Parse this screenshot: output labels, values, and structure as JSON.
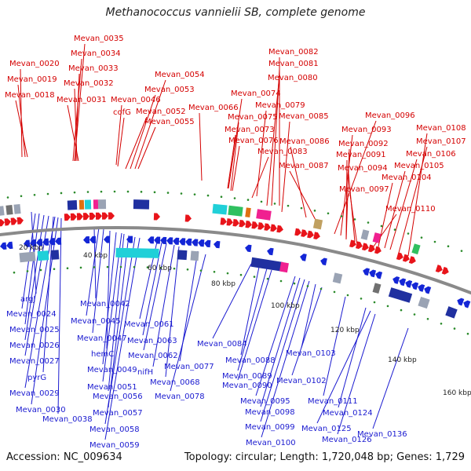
{
  "title": "Methanococcus vannielii SB, complete genome",
  "footer": {
    "accession": "Accession: NC_009634",
    "summary": "Topology: circular; Length: 1,720,048 bp; Genes: 1,729"
  },
  "colors": {
    "forward": "#e8141a",
    "reverse": "#1426d6",
    "backbone": "#8a8a8a",
    "label_forward": "#d40000",
    "label_reverse": "#1a1ad0",
    "tick": "#2a8a2a"
  },
  "ruler": [
    "20 kbp",
    "40 kbp",
    "60 kbp",
    "80 kbp",
    "100 kbp",
    "120 kbp",
    "140 kbp",
    "160 kbp"
  ],
  "forward_labels": [
    "Mevan_0035",
    "Mevan_0034",
    "Mevan_0033",
    "Mevan_0032",
    "Mevan_0031",
    "Mevan_0020",
    "Mevan_0019",
    "Mevan_0018",
    "Mevan_0054",
    "Mevan_0053",
    "Mevan_0046",
    "Mevan_0052",
    "cofG",
    "Mevan_0055",
    "Mevan_0066",
    "Mevan_0082",
    "Mevan_0081",
    "Mevan_0080",
    "Mevan_0074",
    "Mevan_0079",
    "Mevan_0075",
    "Mevan_0085",
    "Mevan_0073",
    "Mevan_0076",
    "Mevan_0086",
    "Mevan_0083",
    "Mevan_0087",
    "Mevan_0096",
    "Mevan_0093",
    "Mevan_0108",
    "Mevan_0092",
    "Mevan_0107",
    "Mevan_0091",
    "Mevan_0106",
    "Mevan_0094",
    "Mevan_0105",
    "Mevan_0104",
    "Mevan_0097",
    "Mevan_0110"
  ],
  "reverse_labels": [
    "argJ",
    "Mevan_0024",
    "Mevan_0025",
    "Mevan_0026",
    "Mevan_0027",
    "pyrG",
    "Mevan_0029",
    "Mevan_0030",
    "Mevan_0038",
    "Mevan_0042",
    "Mevan_0045",
    "Mevan_0047",
    "hemC",
    "Mevan_0049",
    "Mevan_0051",
    "Mevan_0056",
    "Mevan_0057",
    "Mevan_0058",
    "Mevan_0059",
    "Mevan_0061",
    "Mevan_0063",
    "Mevan_0062",
    "nifH",
    "Mevan_0068",
    "Mevan_0077",
    "Mevan_0078",
    "Mevan_0084",
    "Mevan_0088",
    "Mevan_0089",
    "Mevan_0090",
    "Mevan_0095",
    "Mevan_0098",
    "Mevan_0099",
    "Mevan_0100",
    "Mevan_0103",
    "Mevan_0102",
    "Mevan_0111",
    "Mevan_0124",
    "Mevan_0125",
    "Mevan_0126",
    "Mevan_0136"
  ]
}
